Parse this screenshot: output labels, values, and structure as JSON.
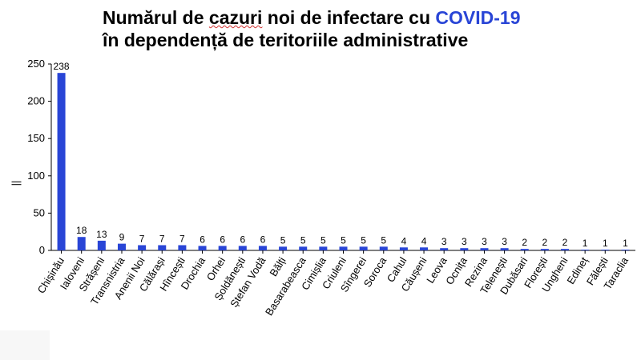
{
  "title": {
    "line1_part1": "Numărul de ",
    "line1_part2": "cazuri",
    "line1_part3": " noi de infectare cu ",
    "line1_highlight": "COVID-19",
    "line2": "în dependență de teritoriile administrative"
  },
  "colors": {
    "bar": "#2945d6",
    "axis": "#000000"
  },
  "chart_data": {
    "type": "bar",
    "title": "Numărul de cazuri noi de infectare cu COVID-19 în dependență de teritoriile administrative",
    "ylabel": "||",
    "xlabel": "",
    "ylim": [
      0,
      250
    ],
    "yticks": [
      0,
      50,
      100,
      150,
      200,
      250
    ],
    "grid": false,
    "categories": [
      "Chișinău",
      "Ialoveni",
      "Strășeni",
      "Transnistria",
      "Anenii Noi",
      "Călărași",
      "Hîncești",
      "Drochia",
      "Orhei",
      "Șoldănești",
      "Ștefan Vodă",
      "Bălți",
      "Basarabeasca",
      "Cimișlia",
      "Criuleni",
      "Sîngerei",
      "Soroca",
      "Cahul",
      "Căușeni",
      "Leova",
      "Ocnița",
      "Rezina",
      "Telenești",
      "Dubăsari",
      "Florești",
      "Ungheni",
      "Edineț",
      "Fălești",
      "Taraclia"
    ],
    "values": [
      238,
      18,
      13,
      9,
      7,
      7,
      7,
      6,
      6,
      6,
      6,
      5,
      5,
      5,
      5,
      5,
      5,
      4,
      4,
      3,
      3,
      3,
      3,
      2,
      2,
      2,
      1,
      1,
      1
    ]
  }
}
